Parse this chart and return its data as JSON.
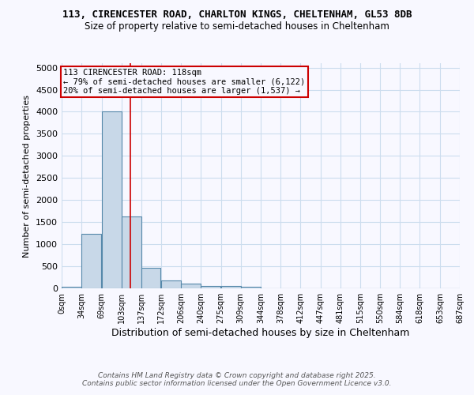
{
  "title_line1": "113, CIRENCESTER ROAD, CHARLTON KINGS, CHELTENHAM, GL53 8DB",
  "title_line2": "Size of property relative to semi-detached houses in Cheltenham",
  "xlabel": "Distribution of semi-detached houses by size in Cheltenham",
  "ylabel": "Number of semi-detached properties",
  "footer1": "Contains HM Land Registry data © Crown copyright and database right 2025.",
  "footer2": "Contains public sector information licensed under the Open Government Licence v3.0.",
  "annotation_line1": "113 CIRENCESTER ROAD: 118sqm",
  "annotation_line2": "← 79% of semi-detached houses are smaller (6,122)",
  "annotation_line3": "20% of semi-detached houses are larger (1,537) →",
  "property_size": 118,
  "bin_edges": [
    0,
    34,
    69,
    103,
    137,
    172,
    206,
    240,
    275,
    309,
    344,
    378,
    412,
    447,
    481,
    515,
    550,
    584,
    618,
    653,
    687
  ],
  "bar_heights": [
    30,
    1230,
    4010,
    1620,
    470,
    175,
    110,
    60,
    50,
    30,
    0,
    0,
    0,
    0,
    0,
    0,
    0,
    0,
    0,
    0
  ],
  "bar_color": "#c8d8e8",
  "bar_edge_color": "#5588aa",
  "vline_color": "#cc0000",
  "ylim": [
    0,
    5100
  ],
  "yticks": [
    0,
    500,
    1000,
    1500,
    2000,
    2500,
    3000,
    3500,
    4000,
    4500,
    5000
  ],
  "bg_color": "#f8f8ff",
  "grid_color": "#ccddee",
  "annotation_box_color": "#cc0000"
}
